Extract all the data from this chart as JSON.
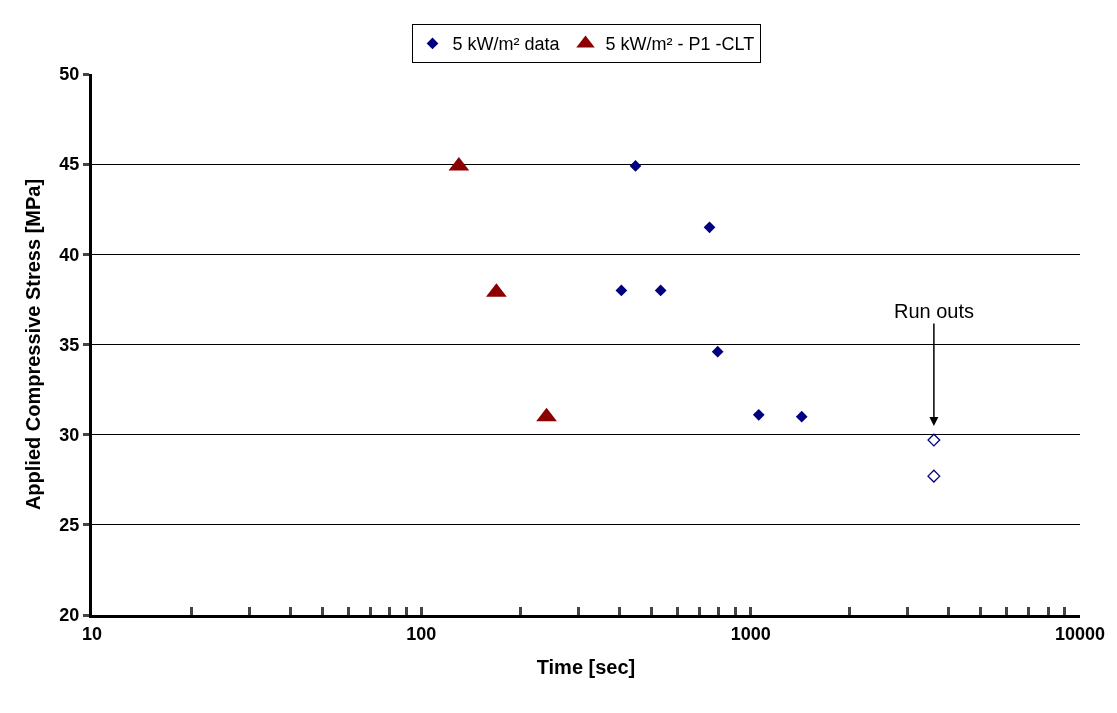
{
  "chart_data": {
    "type": "scatter",
    "xlabel": "Time [sec]",
    "ylabel": "Applied Compressive Stress [MPa]",
    "log": "x",
    "xlim": [
      10,
      10000
    ],
    "ylim": [
      20,
      50
    ],
    "xticks": [
      10,
      {
        "value": 20,
        "label": null
      },
      {
        "value": 30,
        "label": null
      },
      {
        "value": 40,
        "label": null
      },
      {
        "value": 50,
        "label": null
      },
      {
        "value": 60,
        "label": null
      },
      {
        "value": 70,
        "label": null
      },
      {
        "value": 80,
        "label": null
      },
      {
        "value": 90,
        "label": null
      },
      100,
      {
        "value": 200,
        "label": null
      },
      {
        "value": 300,
        "label": null
      },
      {
        "value": 400,
        "label": null
      },
      {
        "value": 500,
        "label": null
      },
      {
        "value": 600,
        "label": null
      },
      {
        "value": 700,
        "label": null
      },
      {
        "value": 800,
        "label": null
      },
      {
        "value": 900,
        "label": null
      },
      1000,
      {
        "value": 2000,
        "label": null
      },
      {
        "value": 3000,
        "label": null
      },
      {
        "value": 4000,
        "label": null
      },
      {
        "value": 5000,
        "label": null
      },
      {
        "value": 6000,
        "label": null
      },
      {
        "value": 7000,
        "label": null
      },
      {
        "value": 8000,
        "label": null
      },
      {
        "value": 9000,
        "label": null
      },
      10000
    ],
    "yticks": [
      20,
      25,
      30,
      35,
      40,
      45,
      50
    ],
    "grid": "y",
    "legend": "top",
    "series": [
      {
        "name": "5 kW/m² data",
        "color": "#000080",
        "marker": "diamond",
        "x": [
          405,
          447,
          533,
          750,
          794,
          1058,
          1429
        ],
        "values": [
          38.0,
          44.9,
          38.0,
          41.5,
          34.6,
          31.1,
          31.0
        ]
      },
      {
        "name": "5 kW/m² - P1 -CLT",
        "color": "#8b0000",
        "marker": "triangle",
        "x": [
          130,
          169,
          240
        ],
        "values": [
          44.9,
          37.9,
          31.0
        ]
      },
      {
        "color": "#000080",
        "marker": "diamond",
        "x": [
          3600,
          3600
        ],
        "values": [
          29.7,
          27.7
        ]
      }
    ],
    "annotations": [
      "Run outs"
    ]
  }
}
